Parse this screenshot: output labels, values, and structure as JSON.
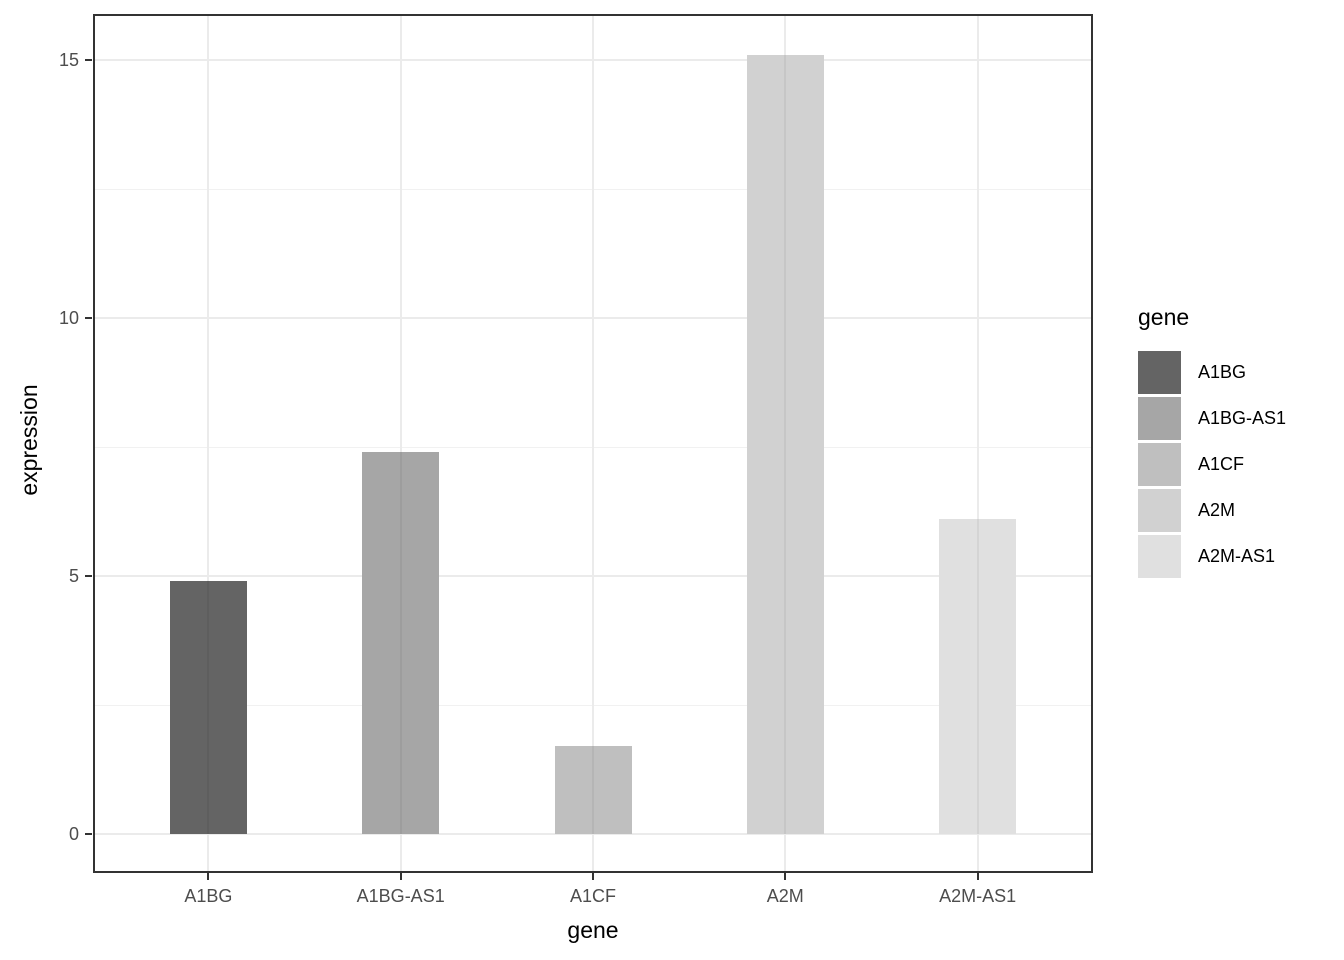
{
  "chart_data": {
    "type": "bar",
    "title": "",
    "xlabel": "gene",
    "ylabel": "expression",
    "categories": [
      "A1BG",
      "A1BG-AS1",
      "A1CF",
      "A2M",
      "A2M-AS1"
    ],
    "values": [
      4.9,
      7.4,
      1.7,
      15.1,
      6.1
    ],
    "bar_colors": [
      "#646464",
      "#A6A6A6",
      "#BFBFBF",
      "#D1D1D1",
      "#E0E0E0"
    ],
    "ylim": [
      0,
      15.9
    ],
    "yticks": [
      0,
      5,
      10,
      15
    ],
    "yticks_minor": [
      2.5,
      7.5,
      12.5
    ],
    "grid": "major-and-minor, light gray on white",
    "legend": {
      "title": "gene",
      "position": "right",
      "entries": [
        {
          "label": "A1BG",
          "color": "#646464"
        },
        {
          "label": "A1BG-AS1",
          "color": "#A6A6A6"
        },
        {
          "label": "A1CF",
          "color": "#BFBFBF"
        },
        {
          "label": "A2M",
          "color": "#D1D1D1"
        },
        {
          "label": "A2M-AS1",
          "color": "#E0E0E0"
        }
      ]
    },
    "colors": {
      "background": "#FFFFFF",
      "panel_border": "#333333",
      "grid_major": "#EBEBEB",
      "grid_minor": "#F1F1F1",
      "tick_mark": "#333333",
      "tick_label": "#4D4D4D",
      "axis_title": "#000000"
    }
  }
}
